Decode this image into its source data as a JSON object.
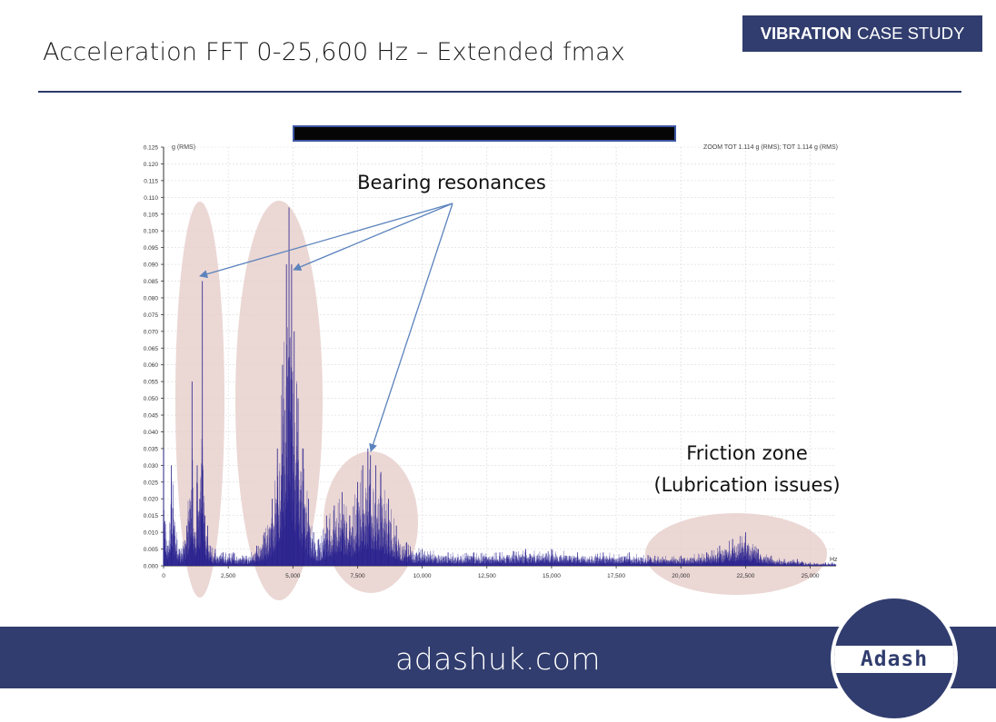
{
  "slide": {
    "title": "Acceleration FFT 0-25,600 Hz – Extended fmax",
    "badge_bold": "VIBRATION",
    "badge_rest": "CASE STUDY",
    "footer_url": "adashuk.com",
    "logo_text": "Adash"
  },
  "colors": {
    "brand_navy": "#313d6e",
    "spectrum": "#27208e",
    "highlight": "#e6cdc9",
    "arrow": "#5b83bd"
  },
  "chart_data": {
    "type": "line",
    "ylabel": "g (RMS)",
    "xlabel": "Hz",
    "header_right": "ZOOM TOT 1.114 g (RMS); TOT 1.114 g (RMS)",
    "xlim": [
      0,
      26000
    ],
    "ylim": [
      0,
      0.125
    ],
    "xticks": [
      0,
      2500,
      5000,
      7500,
      10000,
      12500,
      15000,
      17500,
      20000,
      22500,
      25000
    ],
    "xtick_labels": [
      "0",
      "2,500",
      "5,000",
      "7,500",
      "10,000",
      "12,500",
      "15,000",
      "17,500",
      "20,000",
      "22,500",
      "25,000"
    ],
    "yticks": [
      0,
      0.005,
      0.01,
      0.015,
      0.02,
      0.025,
      0.03,
      0.035,
      0.04,
      0.045,
      0.05,
      0.055,
      0.06,
      0.065,
      0.07,
      0.075,
      0.08,
      0.085,
      0.09,
      0.095,
      0.1,
      0.105,
      0.11,
      0.115,
      0.12,
      0.125
    ],
    "ytick_labels": [
      "0.000",
      "0.005",
      "0.010",
      "0.015",
      "0.020",
      "0.025",
      "0.030",
      "0.035",
      "0.040",
      "0.045",
      "0.050",
      "0.055",
      "0.060",
      "0.065",
      "0.070",
      "0.075",
      "0.080",
      "0.085",
      "0.090",
      "0.095",
      "0.100",
      "0.105",
      "0.110",
      "0.115",
      "0.120",
      "0.125"
    ],
    "grid": true,
    "series": [
      {
        "x": [
          0,
          150,
          300,
          600,
          900,
          1100,
          1200,
          1300,
          1400,
          1500,
          1600,
          1700,
          1800,
          2000,
          2300,
          2700,
          3200,
          3600,
          3900,
          4200,
          4400,
          4600,
          4750,
          4850,
          4950,
          5050,
          5200,
          5400,
          5600,
          5800,
          6000,
          6300,
          6600,
          6900,
          7200,
          7500,
          7700,
          7900,
          8000,
          8200,
          8400,
          8700,
          9000,
          9400,
          10000,
          11000,
          12000,
          13000,
          14000,
          15000,
          16000,
          17000,
          18000,
          19000,
          20000,
          21000,
          21500,
          22000,
          22500,
          23000,
          23500,
          24000,
          24500,
          25000,
          25600
        ],
        "y": [
          0.035,
          0.006,
          0.03,
          0.005,
          0.012,
          0.055,
          0.01,
          0.03,
          0.02,
          0.085,
          0.015,
          0.012,
          0.006,
          0.005,
          0.004,
          0.004,
          0.003,
          0.006,
          0.01,
          0.02,
          0.035,
          0.06,
          0.09,
          0.107,
          0.09,
          0.07,
          0.05,
          0.035,
          0.02,
          0.01,
          0.008,
          0.015,
          0.018,
          0.022,
          0.015,
          0.025,
          0.03,
          0.035,
          0.033,
          0.03,
          0.028,
          0.02,
          0.012,
          0.007,
          0.005,
          0.004,
          0.004,
          0.004,
          0.005,
          0.005,
          0.004,
          0.004,
          0.004,
          0.003,
          0.003,
          0.004,
          0.006,
          0.008,
          0.01,
          0.005,
          0.003,
          0.002,
          0.002,
          0.001,
          0.001
        ]
      }
    ],
    "annotations": [
      "Bearing resonances",
      "Friction zone",
      "(Lubrication issues)"
    ]
  }
}
